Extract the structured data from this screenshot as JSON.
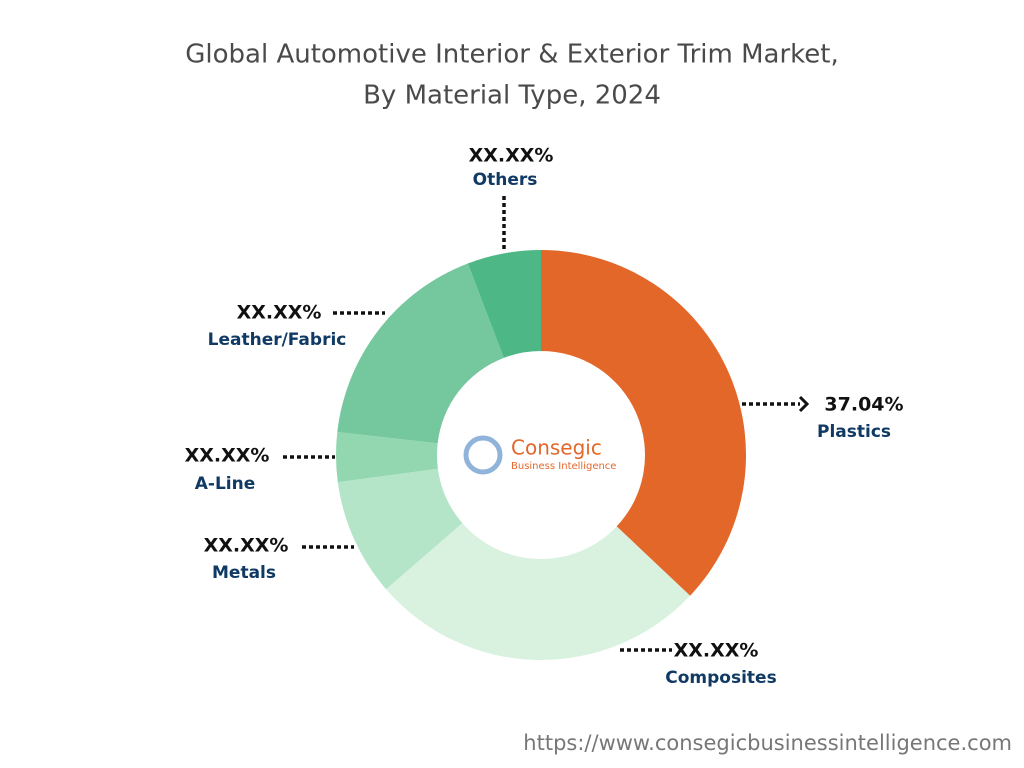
{
  "chart_data": {
    "type": "donut",
    "title": "Global Automotive Interior & Exterior Trim Market,",
    "subtitle": "By Material Type, 2024",
    "categories": [
      "Plastics",
      "Composites",
      "Metals",
      "A-Line",
      "Leather/Fabric",
      "Others"
    ],
    "values": [
      37.04,
      26.6,
      9.25,
      3.9,
      17.4,
      5.81
    ],
    "value_labels": [
      "37.04%",
      "XX.XX%",
      "XX.XX%",
      "XX.XX%",
      "XX.XX%",
      "XX.XX%"
    ],
    "colors": [
      "#e4672a",
      "#d9f2df",
      "#b5e5c8",
      "#92d7b0",
      "#75c79d",
      "#4db886"
    ],
    "logo": {
      "name": "Consegic",
      "tagline": "Business Intelligence"
    },
    "source_url": "https://www.consegicbusinessintelligence.com"
  }
}
